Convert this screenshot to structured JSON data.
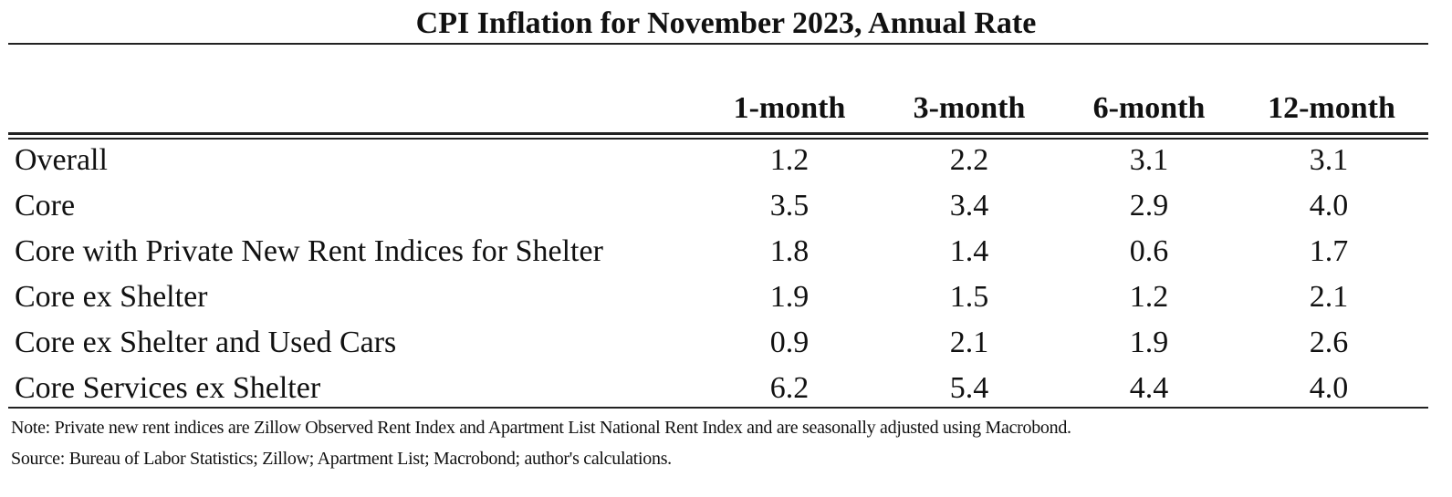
{
  "title": "CPI Inflation for November 2023, Annual Rate",
  "columns": [
    "1-month",
    "3-month",
    "6-month",
    "12-month"
  ],
  "rows": [
    {
      "label": "Overall",
      "values": [
        "1.2",
        "2.2",
        "3.1",
        "3.1"
      ]
    },
    {
      "label": "Core",
      "values": [
        "3.5",
        "3.4",
        "2.9",
        "4.0"
      ]
    },
    {
      "label": "Core with Private New Rent Indices for Shelter",
      "values": [
        "1.8",
        "1.4",
        "0.6",
        "1.7"
      ]
    },
    {
      "label": "Core ex Shelter",
      "values": [
        "1.9",
        "1.5",
        "1.2",
        "2.1"
      ]
    },
    {
      "label": "Core ex Shelter and Used Cars",
      "values": [
        "0.9",
        "2.1",
        "1.9",
        "2.6"
      ]
    },
    {
      "label": "Core Services ex Shelter",
      "values": [
        "6.2",
        "5.4",
        "4.4",
        "4.0"
      ]
    }
  ],
  "note": "Note: Private new rent indices are Zillow Observed Rent Index and Apartment List National Rent Index and are seasonally adjusted using Macrobond.",
  "source": "Source: Bureau of Labor Statistics; Zillow; Apartment List; Macrobond; author's calculations."
}
